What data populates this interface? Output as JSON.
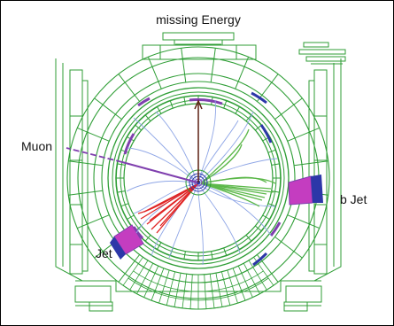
{
  "labels": {
    "missing_energy": "missing Energy",
    "muon": "Muon",
    "b_jet": "b Jet",
    "jet": "Jet"
  },
  "colors": {
    "detector": "#2f9e36",
    "detector_light": "#9ad39d",
    "tracks": "#8fa6e6",
    "jet_tracks": "#e02424",
    "bjet_tracks": "#5cb84a",
    "muon": "#7f3fae",
    "missing_energy": "#5a1e10",
    "calo_magenta": "#c43dc0",
    "calo_blue": "#2c37a8"
  }
}
